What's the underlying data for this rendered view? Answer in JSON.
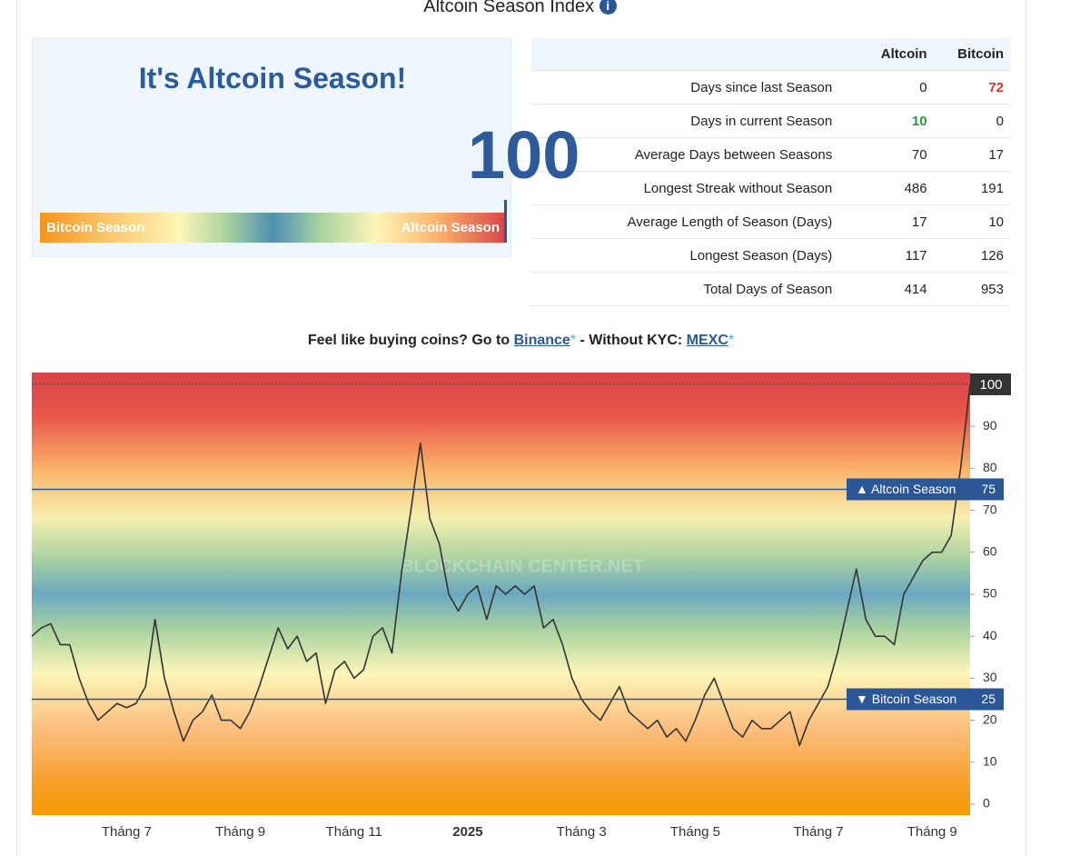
{
  "header": {
    "title": "Altcoin Season Index"
  },
  "gauge": {
    "title": "It's Altcoin Season!",
    "value": 100,
    "range": [
      0,
      100
    ],
    "left_label": "Bitcoin Season",
    "right_label": "Altcoin Season"
  },
  "table": {
    "columns": [
      "Altcoin",
      "Bitcoin"
    ],
    "rows": [
      [
        "Days since last Season",
        0,
        72
      ],
      [
        "Days in current Season",
        10,
        0
      ],
      [
        "Average Days between Seasons",
        70,
        17
      ],
      [
        "Longest Streak without Season",
        486,
        191
      ],
      [
        "Average Length of Season (Days)",
        17,
        10
      ],
      [
        "Longest Season (Days)",
        117,
        126
      ],
      [
        "Total Days of Season",
        414,
        953
      ]
    ]
  },
  "promo": {
    "text1": "Feel like buying coins? Go to",
    "link1": "Binance",
    "mark": "*",
    "text2": "- Without KYC:",
    "link2": "MEXC"
  },
  "chart_data": {
    "type": "line",
    "watermark": "BLOCKCHAIN CENTER.NET",
    "color": "#333333",
    "categories": [
      null,
      null,
      null,
      null,
      null,
      null,
      null,
      null,
      null,
      null,
      "Tháng 7",
      null,
      null,
      null,
      null,
      null,
      null,
      null,
      null,
      null,
      null,
      null,
      "Tháng 9",
      null,
      null,
      null,
      null,
      null,
      null,
      null,
      null,
      null,
      null,
      null,
      "Tháng 11",
      null,
      null,
      null,
      null,
      null,
      null,
      null,
      null,
      null,
      null,
      null,
      "2025",
      null,
      null,
      null,
      null,
      null,
      null,
      null,
      null,
      null,
      null,
      null,
      "Tháng 3",
      null,
      null,
      null,
      null,
      null,
      null,
      null,
      null,
      null,
      null,
      null,
      "Tháng 5",
      null,
      null,
      null,
      null,
      null,
      null,
      null,
      null,
      null,
      null,
      null,
      null,
      "Tháng 7",
      null,
      null,
      null,
      null,
      null,
      null,
      null,
      null,
      null,
      null,
      null,
      "Tháng 9",
      null,
      null,
      null,
      null
    ],
    "values": [
      40,
      42,
      43,
      38,
      38,
      30,
      24,
      20,
      22,
      24,
      23,
      24,
      28,
      44,
      30,
      22,
      15,
      20,
      22,
      26,
      20,
      20,
      18,
      22,
      28,
      35,
      42,
      37,
      40,
      34,
      36,
      24,
      32,
      34,
      30,
      32,
      40,
      42,
      36,
      55,
      70,
      86,
      68,
      62,
      50,
      46,
      50,
      52,
      44,
      52,
      50,
      52,
      50,
      52,
      42,
      44,
      38,
      30,
      25,
      22,
      20,
      24,
      28,
      22,
      20,
      18,
      20,
      16,
      18,
      15,
      20,
      26,
      30,
      24,
      18,
      16,
      20,
      18,
      18,
      20,
      22,
      14,
      20,
      24,
      28,
      36,
      46,
      56,
      44,
      40,
      40,
      38,
      50,
      54,
      58,
      60,
      60,
      64,
      80,
      100
    ],
    "ylim": [
      -2.6,
      102.8
    ],
    "yticks": [
      0,
      10,
      20,
      30,
      40,
      50,
      60,
      70,
      80,
      90
    ],
    "reference_lines": [
      {
        "value": 75,
        "label": "▲ Altcoin Season"
      },
      {
        "value": 25,
        "label": "▼ Bitcoin Season"
      }
    ]
  }
}
